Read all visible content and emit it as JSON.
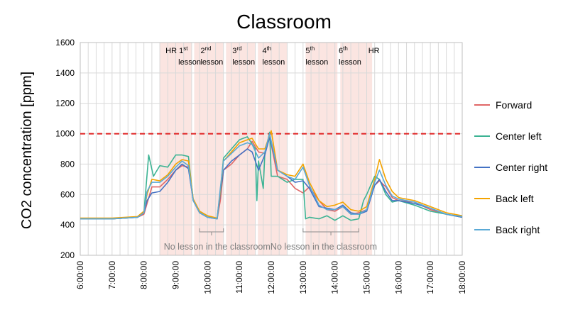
{
  "chart_data": {
    "type": "line",
    "title": "Classroom",
    "ylabel": "CO2 concentration [ppm]",
    "xlabel": "",
    "ylim": [
      200,
      1600
    ],
    "xlim": [
      6,
      18
    ],
    "y_ticks": [
      "200",
      "400",
      "600",
      "800",
      "1000",
      "1200",
      "1400",
      "1600"
    ],
    "x_ticks": [
      "6:00:00",
      "7:00:00",
      "8:00:00",
      "9:00:00",
      "10:00:00",
      "11:00:00",
      "12:00:00",
      "13:00:00",
      "14:00:00",
      "15:00:00",
      "16:00:00",
      "17:00:00",
      "18:00:00"
    ],
    "grid": true,
    "legend_position": "right",
    "threshold": {
      "value": 1000,
      "color": "#e02020"
    },
    "shaded_periods": [
      {
        "start": 8.5,
        "end": 9.5
      },
      {
        "start": 9.58,
        "end": 10.5
      },
      {
        "start": 10.58,
        "end": 11.5
      },
      {
        "start": 11.58,
        "end": 12.5
      },
      {
        "start": 13.08,
        "end": 14.08
      },
      {
        "start": 14.17,
        "end": 15.17
      }
    ],
    "lesson_labels": [
      {
        "x": 8.68,
        "parts": [
          {
            "t": "HR 1"
          },
          {
            "t": "st",
            "sup": true
          }
        ],
        "line2": "lesson"
      },
      {
        "x": 9.78,
        "parts": [
          {
            "t": "2"
          },
          {
            "t": "nd",
            "sup": true
          }
        ],
        "line2": "lesson"
      },
      {
        "x": 10.78,
        "parts": [
          {
            "t": "3"
          },
          {
            "t": "rd",
            "sup": true
          }
        ],
        "line2": "lesson"
      },
      {
        "x": 11.72,
        "parts": [
          {
            "t": "4"
          },
          {
            "t": "th",
            "sup": true
          }
        ],
        "line2": "lesson"
      },
      {
        "x": 13.08,
        "parts": [
          {
            "t": "5"
          },
          {
            "t": "th",
            "sup": true
          }
        ],
        "line2": "lesson"
      },
      {
        "x": 14.12,
        "parts": [
          {
            "t": "6"
          },
          {
            "t": "th",
            "sup": true
          }
        ],
        "line2": "lesson"
      },
      {
        "x": 15.05,
        "parts": [
          {
            "t": "HR"
          }
        ],
        "line2": ""
      }
    ],
    "annotations": [
      {
        "text": "No lesson in the classroom",
        "bracket": [
          9.75,
          10.5
        ],
        "x": 10.3,
        "y": 265
      },
      {
        "text": "No lesson in the classroom",
        "bracket": [
          13.0,
          14.75
        ],
        "x": 13.65,
        "y": 275
      }
    ],
    "series": [
      {
        "name": "Forward",
        "color": "#e06666",
        "x": [
          6.0,
          7.0,
          7.8,
          8.0,
          8.1,
          8.25,
          8.5,
          8.75,
          9.0,
          9.2,
          9.4,
          9.55,
          9.75,
          10.0,
          10.3,
          10.4,
          10.5,
          10.75,
          11.0,
          11.25,
          11.4,
          11.6,
          11.8,
          11.95,
          12.2,
          12.5,
          12.75,
          13.0,
          13.2,
          13.5,
          13.75,
          14.0,
          14.25,
          14.5,
          14.75,
          15.0,
          15.25,
          15.4,
          15.6,
          15.8,
          16.0,
          16.5,
          17.0,
          17.5,
          18.0
        ],
        "y": [
          440,
          440,
          450,
          470,
          540,
          650,
          650,
          700,
          760,
          790,
          780,
          560,
          480,
          450,
          440,
          560,
          760,
          800,
          860,
          900,
          950,
          880,
          870,
          980,
          720,
          700,
          640,
          610,
          650,
          560,
          500,
          490,
          520,
          470,
          480,
          500,
          660,
          690,
          650,
          580,
          560,
          550,
          500,
          470,
          450
        ]
      },
      {
        "name": "Center left",
        "color": "#3cb393",
        "x": [
          6.0,
          7.0,
          7.8,
          8.0,
          8.15,
          8.3,
          8.5,
          8.75,
          9.0,
          9.2,
          9.4,
          9.55,
          9.75,
          10.0,
          10.3,
          10.4,
          10.5,
          10.75,
          11.0,
          11.25,
          11.5,
          11.55,
          11.6,
          11.75,
          11.8,
          11.95,
          12.0,
          12.2,
          12.5,
          12.75,
          13.0,
          13.08,
          13.2,
          13.5,
          13.75,
          14.0,
          14.25,
          14.5,
          14.75,
          14.9,
          15.0,
          15.25,
          15.4,
          15.6,
          15.8,
          16.0,
          16.5,
          17.0,
          17.5,
          18.0
        ],
        "y": [
          440,
          440,
          450,
          480,
          860,
          720,
          790,
          780,
          860,
          860,
          850,
          560,
          490,
          460,
          440,
          620,
          840,
          900,
          960,
          980,
          900,
          560,
          820,
          640,
          870,
          1010,
          720,
          720,
          680,
          700,
          700,
          440,
          450,
          440,
          460,
          430,
          460,
          430,
          440,
          560,
          600,
          720,
          700,
          600,
          550,
          560,
          530,
          490,
          470,
          450
        ]
      },
      {
        "name": "Center right",
        "color": "#4472c4",
        "x": [
          6.0,
          7.0,
          7.8,
          8.0,
          8.1,
          8.25,
          8.5,
          8.75,
          9.0,
          9.2,
          9.4,
          9.55,
          9.75,
          10.0,
          10.3,
          10.4,
          10.5,
          10.75,
          11.0,
          11.25,
          11.4,
          11.6,
          11.8,
          11.95,
          12.2,
          12.5,
          12.75,
          13.0,
          13.2,
          13.5,
          13.75,
          14.0,
          14.25,
          14.5,
          14.75,
          15.0,
          15.25,
          15.4,
          15.6,
          15.8,
          16.0,
          16.5,
          17.0,
          17.5,
          18.0
        ],
        "y": [
          440,
          440,
          450,
          480,
          560,
          610,
          620,
          680,
          760,
          800,
          770,
          560,
          480,
          450,
          440,
          600,
          760,
          820,
          860,
          900,
          880,
          760,
          860,
          980,
          760,
          720,
          680,
          690,
          640,
          520,
          510,
          500,
          530,
          480,
          470,
          490,
          660,
          700,
          620,
          560,
          560,
          540,
          510,
          470,
          450
        ]
      },
      {
        "name": "Back left",
        "color": "#f4a300",
        "x": [
          6.0,
          7.0,
          7.8,
          8.0,
          8.1,
          8.25,
          8.5,
          8.75,
          9.0,
          9.2,
          9.4,
          9.55,
          9.75,
          10.0,
          10.3,
          10.4,
          10.5,
          10.75,
          11.0,
          11.25,
          11.4,
          11.6,
          11.8,
          12.0,
          12.2,
          12.5,
          12.75,
          13.0,
          13.2,
          13.5,
          13.75,
          14.0,
          14.25,
          14.5,
          14.75,
          15.0,
          15.25,
          15.4,
          15.6,
          15.8,
          16.0,
          16.5,
          17.0,
          17.5,
          18.0
        ],
        "y": [
          445,
          445,
          455,
          490,
          600,
          700,
          690,
          730,
          800,
          830,
          820,
          570,
          490,
          460,
          445,
          620,
          820,
          880,
          940,
          960,
          970,
          900,
          900,
          1020,
          760,
          730,
          720,
          800,
          680,
          560,
          520,
          530,
          550,
          500,
          490,
          520,
          700,
          830,
          700,
          620,
          580,
          560,
          520,
          480,
          460
        ]
      },
      {
        "name": "Back right",
        "color": "#5aa9d6",
        "x": [
          6.0,
          7.0,
          7.8,
          8.0,
          8.1,
          8.25,
          8.5,
          8.75,
          9.0,
          9.2,
          9.4,
          9.55,
          9.75,
          10.0,
          10.3,
          10.4,
          10.5,
          10.75,
          11.0,
          11.25,
          11.4,
          11.6,
          11.8,
          11.95,
          12.2,
          12.5,
          12.75,
          13.0,
          13.2,
          13.5,
          13.75,
          14.0,
          14.25,
          14.5,
          14.75,
          15.0,
          15.25,
          15.4,
          15.6,
          15.8,
          16.0,
          16.5,
          17.0,
          17.5,
          18.0
        ],
        "y": [
          440,
          440,
          450,
          480,
          620,
          680,
          680,
          720,
          780,
          820,
          790,
          560,
          480,
          450,
          440,
          640,
          820,
          870,
          920,
          940,
          930,
          840,
          880,
          1000,
          760,
          720,
          700,
          780,
          660,
          530,
          500,
          500,
          520,
          470,
          470,
          500,
          680,
          760,
          660,
          590,
          570,
          550,
          510,
          470,
          455
        ]
      }
    ]
  }
}
